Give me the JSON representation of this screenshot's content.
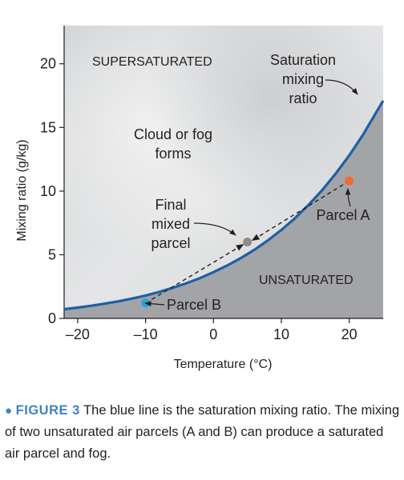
{
  "chart_data": {
    "type": "line",
    "title": "",
    "xlabel": "Temperature (°C)",
    "ylabel": "Mixing ratio (g/kg)",
    "xlim": [
      -22,
      25
    ],
    "ylim": [
      0,
      23
    ],
    "xticks": [
      -20,
      -10,
      0,
      10,
      20
    ],
    "yticks": [
      0,
      5,
      10,
      15,
      20
    ],
    "xtick_labels": [
      "–20",
      "–10",
      "0",
      "10",
      "20"
    ],
    "ytick_labels": [
      "0",
      "5",
      "10",
      "15",
      "20"
    ],
    "grid": false,
    "series": [
      {
        "name": "Saturation mixing ratio",
        "color": "#1d5fa8",
        "x": [
          -22,
          -20,
          -18,
          -16,
          -14,
          -12,
          -10,
          -8,
          -6,
          -4,
          -2,
          0,
          2,
          4,
          6,
          8,
          10,
          12,
          14,
          16,
          18,
          20,
          22,
          24,
          25
        ],
        "y": [
          0.72,
          0.85,
          0.99,
          1.16,
          1.34,
          1.56,
          1.8,
          2.08,
          2.4,
          2.76,
          3.16,
          3.63,
          4.15,
          4.73,
          5.38,
          6.12,
          6.95,
          7.87,
          8.91,
          10.07,
          11.37,
          12.8,
          14.4,
          16.2,
          17.1
        ]
      }
    ],
    "points": [
      {
        "name": "Parcel A",
        "x": 20,
        "y": 10.8,
        "color": "#ef6c2f"
      },
      {
        "name": "Parcel B",
        "x": -10,
        "y": 1.2,
        "color": "#27a3d9"
      },
      {
        "name": "Final mixed parcel",
        "x": 5,
        "y": 6.0,
        "color": "#8c8c8c"
      }
    ],
    "region_labels": {
      "supersaturated": "SUPERSATURATED",
      "unsaturated": "UNSATURATED",
      "cloud_line1": "Cloud or fog",
      "cloud_line2": "forms"
    },
    "annotations": {
      "saturation": [
        "Saturation",
        "mixing",
        "ratio"
      ],
      "parcel_a": "Parcel A",
      "parcel_b": "Parcel B",
      "final": [
        "Final",
        "mixed",
        "parcel"
      ]
    }
  },
  "caption": {
    "bullet": "●",
    "label": "FIGURE 3",
    "text": "The blue line is the saturation mixing ratio. The mixing of two unsaturated air parcels (A and B) can produce a saturated air parcel and fog."
  }
}
